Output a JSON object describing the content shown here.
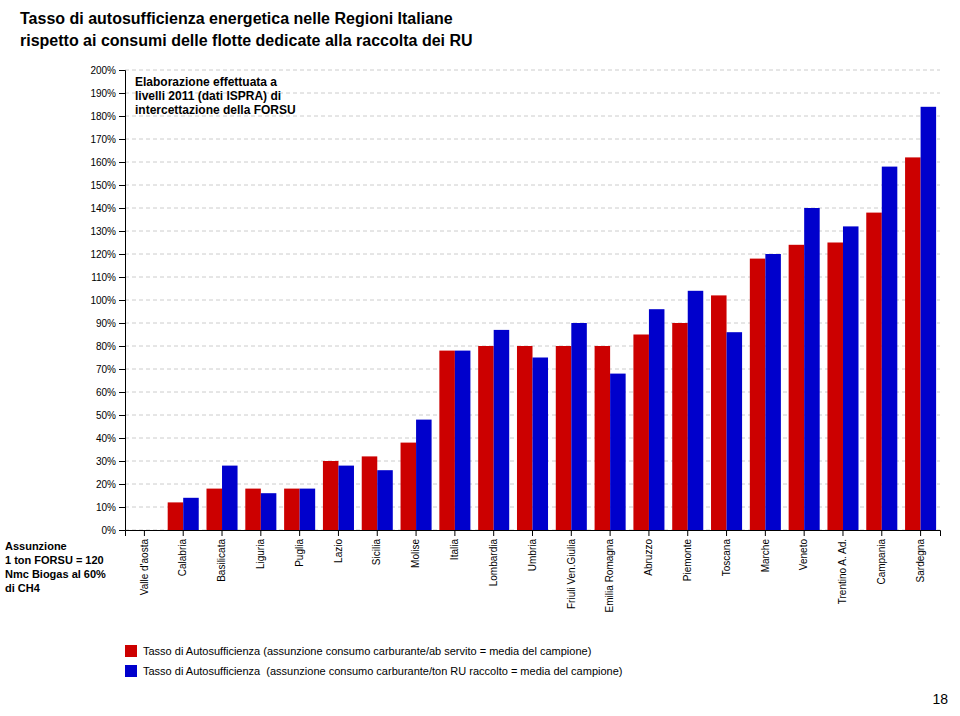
{
  "chart_data": {
    "type": "bar",
    "title": "Tasso di autosufficienza energetica nelle Regioni Italiane",
    "subtitle": "rispetto ai consumi delle flotte dedicate alla raccolta dei RU",
    "annotations": [
      "Elaborazione effettuata a\nlivelli 2011 (dati ISPRA) di\nintercettazione della FORSU",
      "Assunzione\n1 ton FORSU = 120\nNmc Biogas al 60%\ndi CH4",
      "18"
    ],
    "categories": [
      "Valle d'aosta",
      "Calabria",
      "Basilicata",
      "Liguria",
      "Puglia",
      "Lazio",
      "Sicilia",
      "Molise",
      "Italia",
      "Lombardia",
      "Umbria",
      "Friuli Ven.Giulia",
      "Emilia Romagna",
      "Abruzzo",
      "Piemonte",
      "Toscana",
      "Marche",
      "Veneto",
      "Trentino A. Ad.",
      "Campania",
      "Sardegna"
    ],
    "series": [
      {
        "name": "Tasso di Autosufficienza (assunzione consumo carburante/ab servito = media del campione)",
        "color": "#CC0000",
        "values": [
          0,
          12,
          18,
          18,
          18,
          30,
          32,
          38,
          78,
          80,
          80,
          80,
          80,
          85,
          90,
          102,
          118,
          124,
          125,
          138,
          162
        ]
      },
      {
        "name": "Tasso di Autosufficienza  (assunzione consumo carburante/ton RU raccolto = media del campione)",
        "color": "#0000CC",
        "values": [
          0,
          14,
          28,
          16,
          18,
          28,
          26,
          48,
          78,
          87,
          75,
          90,
          68,
          96,
          104,
          86,
          120,
          140,
          132,
          158,
          184
        ]
      }
    ],
    "ylim": [
      0,
      200
    ],
    "yticks": [
      {
        "value": 0,
        "label": "0%"
      },
      {
        "value": 10,
        "label": "10%"
      },
      {
        "value": 20,
        "label": "20%"
      },
      {
        "value": 30,
        "label": "30%"
      },
      {
        "value": 40,
        "label": "40%"
      },
      {
        "value": 50,
        "label": "50%"
      },
      {
        "value": 60,
        "label": "60%"
      },
      {
        "value": 70,
        "label": "70%"
      },
      {
        "value": 80,
        "label": "80%"
      },
      {
        "value": 90,
        "label": "90%"
      },
      {
        "value": 100,
        "label": "100%"
      },
      {
        "value": 110,
        "label": "110%"
      },
      {
        "value": 120,
        "label": "120%"
      },
      {
        "value": 130,
        "label": "130%"
      },
      {
        "value": 140,
        "label": "140%"
      },
      {
        "value": 150,
        "label": "150%"
      },
      {
        "value": 160,
        "label": "160%"
      },
      {
        "value": 170,
        "label": "170%"
      },
      {
        "value": 180,
        "label": "180%"
      },
      {
        "value": 190,
        "label": "190%"
      },
      {
        "value": 200,
        "label": "200%"
      }
    ],
    "grid": true,
    "legend": "bottom"
  }
}
